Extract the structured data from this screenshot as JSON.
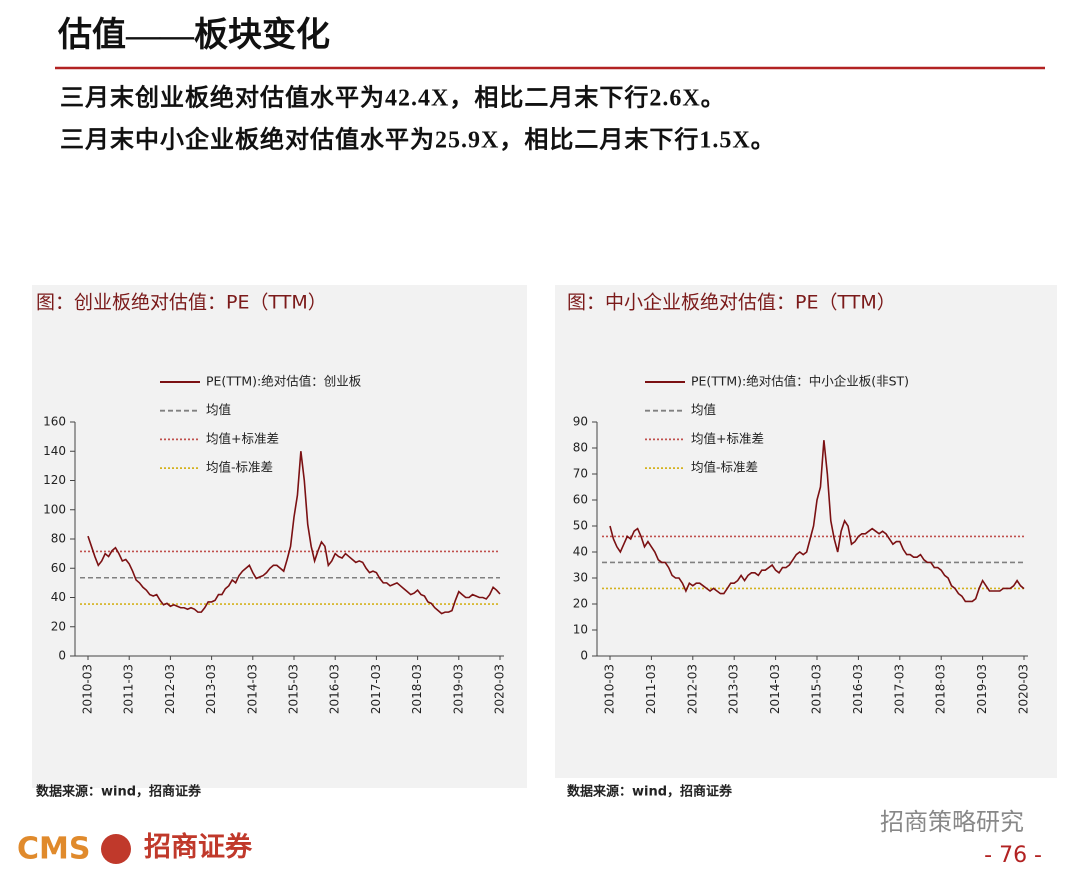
{
  "header": {
    "title": "估值——板块变化",
    "bullets": [
      "三月末创业板绝对估值水平为42.4X，相比二月末下行2.6X。",
      "三月末中小企业板绝对估值水平为25.9X，相比二月末下行1.5X。"
    ]
  },
  "chart_data": [
    {
      "type": "line",
      "title": "图：创业板绝对估值：PE（TTM）",
      "source": "数据来源：wind，招商证券",
      "x": [
        "2010-03",
        "2010-04",
        "2010-05",
        "2010-06",
        "2010-07",
        "2010-08",
        "2010-09",
        "2010-10",
        "2010-11",
        "2010-12",
        "2011-01",
        "2011-02",
        "2011-03",
        "2011-04",
        "2011-05",
        "2011-06",
        "2011-07",
        "2011-08",
        "2011-09",
        "2011-10",
        "2011-11",
        "2011-12",
        "2012-01",
        "2012-02",
        "2012-03",
        "2012-04",
        "2012-05",
        "2012-06",
        "2012-07",
        "2012-08",
        "2012-09",
        "2012-10",
        "2012-11",
        "2012-12",
        "2013-01",
        "2013-02",
        "2013-03",
        "2013-04",
        "2013-05",
        "2013-06",
        "2013-07",
        "2013-08",
        "2013-09",
        "2013-10",
        "2013-11",
        "2013-12",
        "2014-01",
        "2014-02",
        "2014-03",
        "2014-04",
        "2014-05",
        "2014-06",
        "2014-07",
        "2014-08",
        "2014-09",
        "2014-10",
        "2014-11",
        "2014-12",
        "2015-01",
        "2015-02",
        "2015-03",
        "2015-04",
        "2015-05",
        "2015-06",
        "2015-07",
        "2015-08",
        "2015-09",
        "2015-10",
        "2015-11",
        "2015-12",
        "2016-01",
        "2016-02",
        "2016-03",
        "2016-04",
        "2016-05",
        "2016-06",
        "2016-07",
        "2016-08",
        "2016-09",
        "2016-10",
        "2016-11",
        "2016-12",
        "2017-01",
        "2017-02",
        "2017-03",
        "2017-04",
        "2017-05",
        "2017-06",
        "2017-07",
        "2017-08",
        "2017-09",
        "2017-10",
        "2017-11",
        "2017-12",
        "2018-01",
        "2018-02",
        "2018-03",
        "2018-04",
        "2018-05",
        "2018-06",
        "2018-07",
        "2018-08",
        "2018-09",
        "2018-10",
        "2018-11",
        "2018-12",
        "2019-01",
        "2019-02",
        "2019-03",
        "2019-04",
        "2019-05",
        "2019-06",
        "2019-07",
        "2019-08",
        "2019-09",
        "2019-10",
        "2019-11",
        "2019-12",
        "2020-01",
        "2020-02",
        "2020-03"
      ],
      "xticks": [
        "2010-03",
        "2011-03",
        "2012-03",
        "2013-03",
        "2014-03",
        "2015-03",
        "2016-03",
        "2017-03",
        "2018-03",
        "2019-03",
        "2020-03"
      ],
      "series": [
        {
          "name": "PE(TTM):绝对估值：创业板",
          "color": "#7B1113",
          "values": [
            82,
            75,
            68,
            62,
            65,
            70,
            68,
            72,
            74,
            70,
            65,
            66,
            63,
            58,
            52,
            50,
            47,
            45,
            42,
            41,
            42,
            38,
            35,
            36,
            34,
            35,
            34,
            33,
            33,
            32,
            33,
            32,
            30,
            30,
            33,
            37,
            37,
            38,
            42,
            42,
            46,
            48,
            52,
            50,
            55,
            58,
            60,
            62,
            57,
            53,
            54,
            55,
            57,
            60,
            62,
            62,
            60,
            58,
            66,
            75,
            95,
            110,
            140,
            120,
            90,
            75,
            65,
            72,
            78,
            75,
            62,
            65,
            70,
            68,
            67,
            70,
            68,
            66,
            64,
            65,
            64,
            60,
            57,
            58,
            57,
            53,
            50,
            50,
            48,
            49,
            50,
            48,
            46,
            44,
            42,
            43,
            45,
            42,
            41,
            37,
            36,
            33,
            31,
            29,
            30,
            30,
            31,
            38,
            44,
            42,
            40,
            40,
            42,
            41,
            40,
            40,
            39,
            42,
            47,
            45,
            42.4
          ]
        }
      ],
      "hlines": [
        {
          "name": "均值",
          "value": 53.5,
          "color": "#808080",
          "style": "dashed"
        },
        {
          "name": "均值+标准差",
          "value": 71.5,
          "color": "#C0504D",
          "style": "dotted"
        },
        {
          "name": "均值-标准差",
          "value": 35.5,
          "color": "#D4B21E",
          "style": "dotted"
        }
      ],
      "ylim": [
        0,
        160
      ],
      "yticks": [
        0,
        20,
        40,
        60,
        80,
        100,
        120,
        140,
        160
      ]
    },
    {
      "type": "line",
      "title": "图：中小企业板绝对估值：PE（TTM）",
      "source": "数据来源：wind，招商证券",
      "x": [
        "2010-03",
        "2010-04",
        "2010-05",
        "2010-06",
        "2010-07",
        "2010-08",
        "2010-09",
        "2010-10",
        "2010-11",
        "2010-12",
        "2011-01",
        "2011-02",
        "2011-03",
        "2011-04",
        "2011-05",
        "2011-06",
        "2011-07",
        "2011-08",
        "2011-09",
        "2011-10",
        "2011-11",
        "2011-12",
        "2012-01",
        "2012-02",
        "2012-03",
        "2012-04",
        "2012-05",
        "2012-06",
        "2012-07",
        "2012-08",
        "2012-09",
        "2012-10",
        "2012-11",
        "2012-12",
        "2013-01",
        "2013-02",
        "2013-03",
        "2013-04",
        "2013-05",
        "2013-06",
        "2013-07",
        "2013-08",
        "2013-09",
        "2013-10",
        "2013-11",
        "2013-12",
        "2014-01",
        "2014-02",
        "2014-03",
        "2014-04",
        "2014-05",
        "2014-06",
        "2014-07",
        "2014-08",
        "2014-09",
        "2014-10",
        "2014-11",
        "2014-12",
        "2015-01",
        "2015-02",
        "2015-03",
        "2015-04",
        "2015-05",
        "2015-06",
        "2015-07",
        "2015-08",
        "2015-09",
        "2015-10",
        "2015-11",
        "2015-12",
        "2016-01",
        "2016-02",
        "2016-03",
        "2016-04",
        "2016-05",
        "2016-06",
        "2016-07",
        "2016-08",
        "2016-09",
        "2016-10",
        "2016-11",
        "2016-12",
        "2017-01",
        "2017-02",
        "2017-03",
        "2017-04",
        "2017-05",
        "2017-06",
        "2017-07",
        "2017-08",
        "2017-09",
        "2017-10",
        "2017-11",
        "2017-12",
        "2018-01",
        "2018-02",
        "2018-03",
        "2018-04",
        "2018-05",
        "2018-06",
        "2018-07",
        "2018-08",
        "2018-09",
        "2018-10",
        "2018-11",
        "2018-12",
        "2019-01",
        "2019-02",
        "2019-03",
        "2019-04",
        "2019-05",
        "2019-06",
        "2019-07",
        "2019-08",
        "2019-09",
        "2019-10",
        "2019-11",
        "2019-12",
        "2020-01",
        "2020-02",
        "2020-03"
      ],
      "xticks": [
        "2010-03",
        "2011-03",
        "2012-03",
        "2013-03",
        "2014-03",
        "2015-03",
        "2016-03",
        "2017-03",
        "2018-03",
        "2019-03",
        "2020-03"
      ],
      "series": [
        {
          "name": "PE(TTM):绝对估值：中小企业板(非ST)",
          "color": "#7B1113",
          "values": [
            50,
            45,
            42,
            40,
            43,
            46,
            45,
            48,
            49,
            46,
            42,
            44,
            42,
            40,
            37,
            36,
            36,
            34,
            31,
            30,
            30,
            28,
            25,
            28,
            27,
            28,
            28,
            27,
            26,
            25,
            26,
            25,
            24,
            24,
            26,
            28,
            28,
            29,
            31,
            29,
            31,
            32,
            32,
            31,
            33,
            33,
            34,
            35,
            33,
            32,
            34,
            34,
            35,
            37,
            39,
            40,
            39,
            40,
            45,
            50,
            60,
            65,
            83,
            70,
            52,
            45,
            40,
            48,
            52,
            50,
            43,
            44,
            46,
            47,
            47,
            48,
            49,
            48,
            47,
            48,
            47,
            45,
            43,
            44,
            44,
            41,
            39,
            39,
            38,
            38,
            39,
            37,
            36,
            36,
            34,
            34,
            33,
            31,
            30,
            27,
            26,
            24,
            23,
            21,
            21,
            21,
            22,
            26,
            29,
            27,
            25,
            25,
            25,
            25,
            26,
            26,
            26,
            27,
            29,
            27,
            25.9
          ]
        }
      ],
      "hlines": [
        {
          "name": "均值",
          "value": 36,
          "color": "#808080",
          "style": "dashed"
        },
        {
          "name": "均值+标准差",
          "value": 46,
          "color": "#C0504D",
          "style": "dotted"
        },
        {
          "name": "均值-标准差",
          "value": 26,
          "color": "#D4B21E",
          "style": "dotted"
        }
      ],
      "ylim": [
        0,
        90
      ],
      "yticks": [
        0,
        10,
        20,
        30,
        40,
        50,
        60,
        70,
        80,
        90
      ]
    }
  ],
  "footer": {
    "logo": "CMS",
    "company": "招商证券",
    "watermark": "招商策略研究",
    "page": "- 76 -"
  }
}
